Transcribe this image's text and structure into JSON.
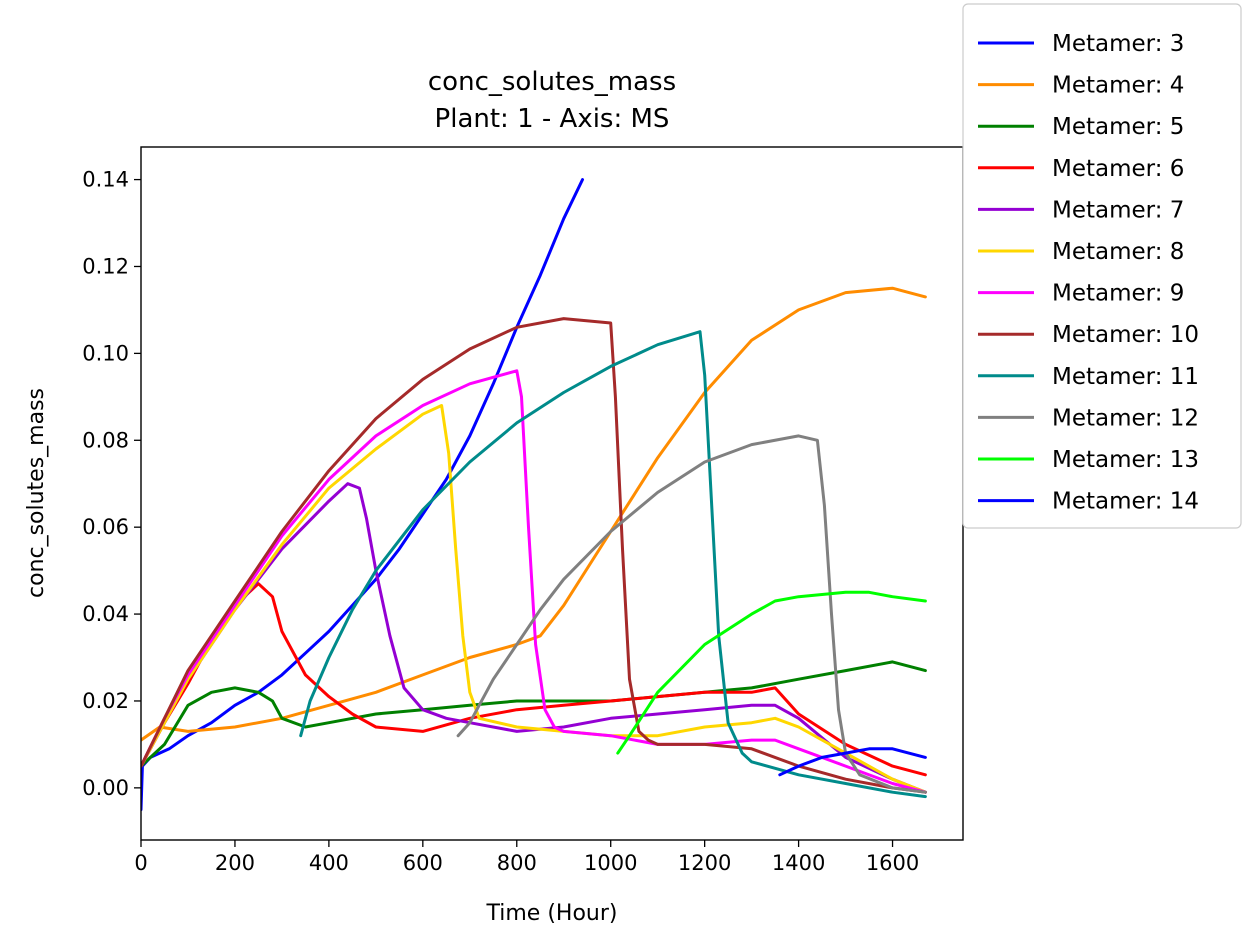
{
  "chart_data": {
    "type": "line",
    "title": "conc_solutes_mass",
    "subtitle": "Plant: 1 - Axis: MS",
    "xlabel": "Time (Hour)",
    "ylabel": "conc_solutes_mass",
    "xlim": [
      0,
      1750
    ],
    "ylim": [
      -0.012,
      0.1475
    ],
    "xticks": [
      0,
      200,
      400,
      600,
      800,
      1000,
      1200,
      1400,
      1600
    ],
    "xtick_labels": [
      "0",
      "200",
      "400",
      "600",
      "800",
      "1000",
      "1200",
      "1400",
      "1600"
    ],
    "yticks": [
      0.0,
      0.02,
      0.04,
      0.06,
      0.08,
      0.1,
      0.12,
      0.14
    ],
    "ytick_labels": [
      "0.00",
      "0.02",
      "0.04",
      "0.06",
      "0.08",
      "0.10",
      "0.12",
      "0.14"
    ],
    "grid": false,
    "legend_position": "outside-top-right",
    "series": [
      {
        "name": "Metamer: 3",
        "color": "#0000ff",
        "x": [
          0,
          3,
          20,
          60,
          100,
          150,
          200,
          250,
          300,
          350,
          400,
          450,
          500,
          550,
          600,
          650,
          700,
          750,
          800,
          850,
          900,
          940
        ],
        "y": [
          -0.005,
          0.005,
          0.007,
          0.009,
          0.012,
          0.015,
          0.019,
          0.022,
          0.026,
          0.031,
          0.036,
          0.042,
          0.048,
          0.055,
          0.063,
          0.071,
          0.081,
          0.093,
          0.106,
          0.118,
          0.131,
          0.14
        ]
      },
      {
        "name": "Metamer: 4",
        "color": "#ff8c00",
        "x": [
          0,
          40,
          100,
          200,
          300,
          400,
          500,
          600,
          700,
          800,
          850,
          900,
          1000,
          1100,
          1200,
          1300,
          1400,
          1500,
          1600,
          1670
        ],
        "y": [
          0.011,
          0.014,
          0.013,
          0.014,
          0.016,
          0.019,
          0.022,
          0.026,
          0.03,
          0.033,
          0.035,
          0.042,
          0.059,
          0.076,
          0.091,
          0.103,
          0.11,
          0.114,
          0.115,
          0.113
        ]
      },
      {
        "name": "Metamer: 5",
        "color": "#008000",
        "x": [
          0,
          50,
          100,
          150,
          200,
          250,
          280,
          300,
          350,
          400,
          500,
          600,
          700,
          800,
          900,
          1000,
          1100,
          1200,
          1300,
          1400,
          1500,
          1600,
          1670
        ],
        "y": [
          0.005,
          0.01,
          0.019,
          0.022,
          0.023,
          0.022,
          0.02,
          0.016,
          0.014,
          0.015,
          0.017,
          0.018,
          0.019,
          0.02,
          0.02,
          0.02,
          0.021,
          0.022,
          0.023,
          0.025,
          0.027,
          0.029,
          0.027
        ]
      },
      {
        "name": "Metamer: 6",
        "color": "#ff0000",
        "x": [
          0,
          50,
          100,
          150,
          200,
          250,
          280,
          300,
          350,
          400,
          450,
          500,
          600,
          700,
          800,
          900,
          1000,
          1100,
          1200,
          1300,
          1350,
          1400,
          1500,
          1600,
          1670
        ],
        "y": [
          0.005,
          0.015,
          0.024,
          0.034,
          0.042,
          0.047,
          0.044,
          0.036,
          0.026,
          0.021,
          0.017,
          0.014,
          0.013,
          0.016,
          0.018,
          0.019,
          0.02,
          0.021,
          0.022,
          0.022,
          0.023,
          0.017,
          0.01,
          0.005,
          0.003
        ]
      },
      {
        "name": "Metamer: 7",
        "color": "#9400d3",
        "x": [
          0,
          50,
          100,
          200,
          300,
          400,
          440,
          465,
          480,
          500,
          530,
          560,
          600,
          650,
          700,
          800,
          900,
          1000,
          1100,
          1200,
          1300,
          1350,
          1400,
          1500,
          1600,
          1670
        ],
        "y": [
          0.005,
          0.015,
          0.025,
          0.041,
          0.055,
          0.066,
          0.07,
          0.069,
          0.062,
          0.05,
          0.035,
          0.023,
          0.018,
          0.016,
          0.015,
          0.013,
          0.014,
          0.016,
          0.017,
          0.018,
          0.019,
          0.019,
          0.016,
          0.007,
          0.002,
          -0.001
        ]
      },
      {
        "name": "Metamer: 8",
        "color": "#ffd700",
        "x": [
          0,
          50,
          100,
          200,
          300,
          400,
          500,
          600,
          640,
          655,
          670,
          685,
          700,
          720,
          800,
          900,
          1000,
          1100,
          1200,
          1300,
          1350,
          1400,
          1500,
          1600,
          1670
        ],
        "y": [
          0.005,
          0.015,
          0.025,
          0.041,
          0.056,
          0.069,
          0.078,
          0.086,
          0.088,
          0.077,
          0.055,
          0.035,
          0.022,
          0.016,
          0.014,
          0.013,
          0.012,
          0.012,
          0.014,
          0.015,
          0.016,
          0.014,
          0.008,
          0.002,
          -0.001
        ]
      },
      {
        "name": "Metamer: 9",
        "color": "#ff00ff",
        "x": [
          0,
          50,
          100,
          200,
          300,
          400,
          500,
          600,
          700,
          800,
          810,
          825,
          840,
          860,
          880,
          900,
          1000,
          1100,
          1200,
          1300,
          1350,
          1400,
          1500,
          1600,
          1670
        ],
        "y": [
          0.005,
          0.016,
          0.026,
          0.042,
          0.058,
          0.071,
          0.081,
          0.088,
          0.093,
          0.096,
          0.09,
          0.06,
          0.033,
          0.018,
          0.014,
          0.013,
          0.012,
          0.01,
          0.01,
          0.011,
          0.011,
          0.009,
          0.005,
          0.001,
          -0.001
        ]
      },
      {
        "name": "Metamer: 10",
        "color": "#a52a2a",
        "x": [
          0,
          50,
          100,
          200,
          300,
          400,
          500,
          600,
          700,
          800,
          900,
          1000,
          1010,
          1025,
          1040,
          1060,
          1080,
          1100,
          1200,
          1300,
          1400,
          1500,
          1600,
          1670
        ],
        "y": [
          0.005,
          0.016,
          0.027,
          0.043,
          0.059,
          0.073,
          0.085,
          0.094,
          0.101,
          0.106,
          0.108,
          0.107,
          0.09,
          0.055,
          0.025,
          0.013,
          0.011,
          0.01,
          0.01,
          0.009,
          0.005,
          0.002,
          0.0,
          -0.001
        ]
      },
      {
        "name": "Metamer: 11",
        "color": "#008b8b",
        "x": [
          340,
          360,
          400,
          450,
          500,
          600,
          700,
          800,
          900,
          1000,
          1100,
          1190,
          1200,
          1215,
          1230,
          1250,
          1280,
          1300,
          1400,
          1500,
          1600,
          1670
        ],
        "y": [
          0.012,
          0.02,
          0.03,
          0.041,
          0.05,
          0.064,
          0.075,
          0.084,
          0.091,
          0.097,
          0.102,
          0.105,
          0.095,
          0.065,
          0.035,
          0.015,
          0.008,
          0.006,
          0.003,
          0.001,
          -0.001,
          -0.002
        ]
      },
      {
        "name": "Metamer: 12",
        "color": "#808080",
        "x": [
          675,
          700,
          750,
          800,
          850,
          900,
          1000,
          1100,
          1200,
          1300,
          1400,
          1440,
          1455,
          1470,
          1485,
          1500,
          1530,
          1600,
          1670
        ],
        "y": [
          0.012,
          0.015,
          0.025,
          0.033,
          0.041,
          0.048,
          0.059,
          0.068,
          0.075,
          0.079,
          0.081,
          0.08,
          0.065,
          0.04,
          0.018,
          0.008,
          0.003,
          0.0,
          -0.001
        ]
      },
      {
        "name": "Metamer: 13",
        "color": "#00ff00",
        "x": [
          1015,
          1040,
          1100,
          1200,
          1300,
          1350,
          1400,
          1500,
          1550,
          1600,
          1670
        ],
        "y": [
          0.008,
          0.012,
          0.022,
          0.033,
          0.04,
          0.043,
          0.044,
          0.045,
          0.045,
          0.044,
          0.043
        ]
      },
      {
        "name": "Metamer: 14",
        "color": "#0000ff",
        "x": [
          1360,
          1400,
          1450,
          1500,
          1550,
          1600,
          1670
        ],
        "y": [
          0.003,
          0.005,
          0.007,
          0.008,
          0.009,
          0.009,
          0.007
        ]
      }
    ]
  }
}
